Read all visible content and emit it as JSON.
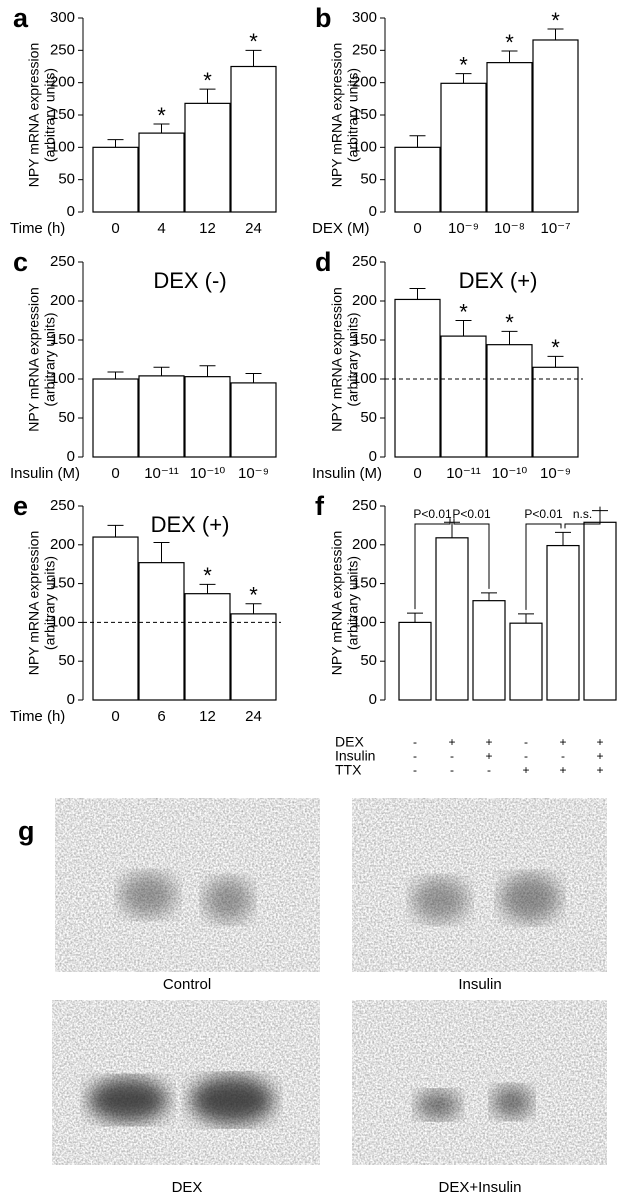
{
  "chart_data": [
    {
      "type": "bar",
      "panel": "a",
      "ylabel": [
        "NPY mRNA expression",
        "(arbitrary units)"
      ],
      "xlabel": "Time (h)",
      "categories": [
        "0",
        "4",
        "12",
        "24"
      ],
      "values": [
        100,
        122,
        168,
        225
      ],
      "errors": [
        12,
        14,
        22,
        25
      ],
      "significance": [
        null,
        "*",
        "*",
        "*"
      ],
      "ylim": [
        0,
        300
      ],
      "yticks": [
        0,
        50,
        100,
        150,
        200,
        250,
        300
      ],
      "color": "#ffffff"
    },
    {
      "type": "bar",
      "panel": "b",
      "ylabel": [
        "NPY mRNA expression",
        "(arbitrary units)"
      ],
      "xlabel": "DEX (M)",
      "categories": [
        "0",
        "10⁻⁹",
        "10⁻⁸",
        "10⁻⁷"
      ],
      "values": [
        100,
        199,
        231,
        266
      ],
      "errors": [
        18,
        15,
        18,
        17
      ],
      "significance": [
        null,
        "*",
        "*",
        "*"
      ],
      "ylim": [
        0,
        300
      ],
      "yticks": [
        0,
        50,
        100,
        150,
        200,
        250,
        300
      ],
      "color": "#ffffff"
    },
    {
      "type": "bar",
      "panel": "c",
      "annotation": "DEX (-)",
      "ylabel": [
        "NPY mRNA expression",
        "(arbitrary units)"
      ],
      "xlabel": "Insulin (M)",
      "categories": [
        "0",
        "10⁻¹¹",
        "10⁻¹⁰",
        "10⁻⁹"
      ],
      "values": [
        100,
        104,
        103,
        95
      ],
      "errors": [
        9,
        11,
        14,
        12
      ],
      "ylim": [
        0,
        250
      ],
      "yticks": [
        0,
        50,
        100,
        150,
        200,
        250
      ],
      "color": "#ffffff"
    },
    {
      "type": "bar",
      "panel": "d",
      "annotation": "DEX (+)",
      "ylabel": [
        "NPY mRNA expression",
        "(arbitrary units)"
      ],
      "xlabel": "Insulin (M)",
      "categories": [
        "0",
        "10⁻¹¹",
        "10⁻¹⁰",
        "10⁻⁹"
      ],
      "values": [
        202,
        155,
        144,
        115
      ],
      "errors": [
        14,
        20,
        17,
        14
      ],
      "significance": [
        null,
        "*",
        "*",
        "*"
      ],
      "hline": 100,
      "ylim": [
        0,
        250
      ],
      "yticks": [
        0,
        50,
        100,
        150,
        200,
        250
      ],
      "color": "#ffffff"
    },
    {
      "type": "bar",
      "panel": "e",
      "annotation": "DEX (+)",
      "ylabel": [
        "NPY mRNA expression",
        "(arbitrary units)"
      ],
      "xlabel": "Time (h)",
      "categories": [
        "0",
        "6",
        "12",
        "24"
      ],
      "values": [
        210,
        177,
        137,
        111
      ],
      "errors": [
        15,
        26,
        12,
        13
      ],
      "significance": [
        null,
        null,
        "*",
        "*"
      ],
      "hline": 100,
      "ylim": [
        0,
        250
      ],
      "yticks": [
        0,
        50,
        100,
        150,
        200,
        250
      ],
      "color": "#ffffff"
    },
    {
      "type": "bar",
      "panel": "f",
      "ylabel": [
        "NPY mRNA expression",
        "(arbitrary units)"
      ],
      "categories": [
        null,
        null,
        null,
        null,
        null,
        null
      ],
      "values": [
        100,
        209,
        128,
        99,
        199,
        229
      ],
      "errors": [
        12,
        20,
        10,
        12,
        17,
        15
      ],
      "comparisons": [
        "P<0.01",
        "P<0.01",
        "P<0.01",
        "n.s."
      ],
      "conditions": [
        {
          "name": "DEX",
          "marks": [
            "-",
            "+",
            "+",
            "-",
            "+",
            "+"
          ]
        },
        {
          "name": "Insulin",
          "marks": [
            "-",
            "-",
            "+",
            "-",
            "-",
            "+"
          ]
        },
        {
          "name": "TTX",
          "marks": [
            "-",
            "-",
            "-",
            "+",
            "+",
            "+"
          ]
        }
      ],
      "ylim": [
        0,
        250
      ],
      "yticks": [
        0,
        50,
        100,
        150,
        200,
        250
      ],
      "color": "#ffffff"
    }
  ],
  "blots": {
    "panel": "g",
    "labels": [
      "Control",
      "Insulin",
      "DEX",
      "DEX+Insulin"
    ]
  }
}
